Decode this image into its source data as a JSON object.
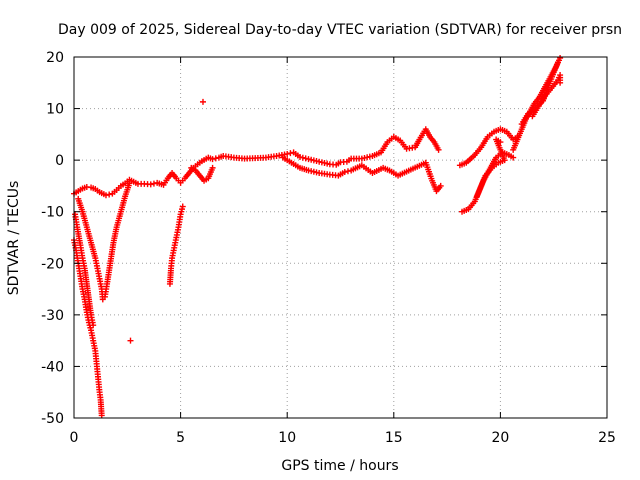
{
  "chart_data": {
    "type": "scatter",
    "title": "Day 009 of 2025, Sidereal Day-to-day VTEC variation (SDTVAR) for receiver prsn",
    "xlabel": "GPS time / hours",
    "ylabel": "SDTVAR / TECUs",
    "xlim": [
      0,
      25
    ],
    "ylim": [
      -50,
      20
    ],
    "grid": true,
    "x_ticks": [
      0,
      5,
      10,
      15,
      20,
      25
    ],
    "y_ticks": [
      20,
      10,
      0,
      -10,
      -20,
      -30,
      -40,
      -50
    ],
    "x_tick_labels": [
      "0",
      "5",
      "10",
      "15",
      "20",
      "25"
    ],
    "y_tick_labels": [
      "20",
      "10",
      "0",
      "-10",
      "-20",
      "-30",
      "-40",
      "-50"
    ],
    "marker": "+",
    "marker_color": "#ff0000",
    "series": [
      {
        "name": "upper-band",
        "points": [
          [
            0.0,
            -6.5
          ],
          [
            0.2,
            -6.0
          ],
          [
            0.4,
            -5.5
          ],
          [
            0.6,
            -5.2
          ],
          [
            0.8,
            -5.3
          ],
          [
            1.0,
            -5.6
          ],
          [
            1.2,
            -6.2
          ],
          [
            1.5,
            -6.8
          ],
          [
            1.8,
            -6.5
          ],
          [
            2.0,
            -5.8
          ],
          [
            2.2,
            -5.0
          ],
          [
            2.4,
            -4.5
          ],
          [
            2.6,
            -3.8
          ],
          [
            2.8,
            -4.2
          ],
          [
            3.0,
            -4.6
          ],
          [
            3.3,
            -4.6
          ],
          [
            3.6,
            -4.7
          ],
          [
            3.9,
            -4.4
          ],
          [
            4.2,
            -4.8
          ],
          [
            4.4,
            -3.5
          ],
          [
            4.6,
            -2.5
          ],
          [
            4.8,
            -3.5
          ],
          [
            5.0,
            -4.4
          ],
          [
            5.2,
            -3.5
          ],
          [
            5.4,
            -2.5
          ],
          [
            5.6,
            -1.5
          ],
          [
            5.8,
            -0.8
          ],
          [
            6.0,
            -0.2
          ],
          [
            6.3,
            0.5
          ],
          [
            6.5,
            0.2
          ],
          [
            6.8,
            0.5
          ],
          [
            7.0,
            0.8
          ],
          [
            7.5,
            0.5
          ],
          [
            8.0,
            0.3
          ],
          [
            8.5,
            0.4
          ],
          [
            9.0,
            0.5
          ],
          [
            9.5,
            0.8
          ],
          [
            10.0,
            1.2
          ],
          [
            10.3,
            1.5
          ],
          [
            10.6,
            0.6
          ],
          [
            11.0,
            0.2
          ],
          [
            11.5,
            -0.3
          ],
          [
            12.0,
            -0.8
          ],
          [
            12.3,
            -0.9
          ],
          [
            12.5,
            -0.4
          ],
          [
            12.8,
            -0.3
          ],
          [
            13.0,
            0.3
          ],
          [
            13.5,
            0.3
          ],
          [
            14.0,
            0.8
          ],
          [
            14.4,
            1.5
          ],
          [
            14.7,
            3.5
          ],
          [
            15.0,
            4.5
          ],
          [
            15.3,
            3.8
          ],
          [
            15.6,
            2.2
          ],
          [
            16.0,
            2.5
          ],
          [
            16.2,
            4.0
          ],
          [
            16.5,
            6.0
          ],
          [
            16.7,
            4.5
          ],
          [
            16.9,
            3.5
          ],
          [
            17.1,
            2.0
          ]
        ]
      },
      {
        "name": "lower-band",
        "points": [
          [
            0.2,
            -7.5
          ],
          [
            0.4,
            -10.0
          ],
          [
            0.6,
            -13.0
          ],
          [
            0.8,
            -16.0
          ],
          [
            1.0,
            -19.0
          ],
          [
            1.1,
            -21.0
          ],
          [
            1.2,
            -23.0
          ],
          [
            1.3,
            -25.0
          ],
          [
            1.35,
            -27.0
          ],
          [
            1.45,
            -26.5
          ],
          [
            1.55,
            -24.0
          ],
          [
            1.7,
            -20.0
          ],
          [
            1.85,
            -16.0
          ],
          [
            2.0,
            -13.0
          ],
          [
            2.2,
            -10.0
          ],
          [
            2.4,
            -7.0
          ],
          [
            2.6,
            -4.5
          ],
          [
            5.5,
            -1.5
          ],
          [
            5.7,
            -2.0
          ],
          [
            5.9,
            -3.0
          ],
          [
            6.1,
            -4.0
          ],
          [
            6.3,
            -3.5
          ],
          [
            6.5,
            -1.5
          ],
          [
            9.8,
            0.5
          ],
          [
            10.2,
            -0.5
          ],
          [
            10.6,
            -1.5
          ],
          [
            11.0,
            -2.0
          ],
          [
            11.5,
            -2.5
          ],
          [
            12.0,
            -2.8
          ],
          [
            12.4,
            -3.0
          ],
          [
            12.7,
            -2.3
          ],
          [
            13.0,
            -2.0
          ],
          [
            13.5,
            -1.0
          ],
          [
            14.0,
            -2.5
          ],
          [
            14.5,
            -1.5
          ],
          [
            14.8,
            -2.0
          ],
          [
            15.2,
            -3.0
          ],
          [
            16.5,
            -0.5
          ],
          [
            16.8,
            -4.0
          ],
          [
            17.0,
            -6.0
          ],
          [
            17.2,
            -5.0
          ]
        ]
      },
      {
        "name": "steep-drop-1",
        "points": [
          [
            0.05,
            -10.5
          ],
          [
            0.15,
            -13.0
          ],
          [
            0.3,
            -16.5
          ],
          [
            0.4,
            -19.0
          ],
          [
            0.5,
            -21.0
          ],
          [
            0.6,
            -24.0
          ],
          [
            0.7,
            -27.0
          ],
          [
            0.8,
            -30.0
          ],
          [
            0.9,
            -32.0
          ]
        ]
      },
      {
        "name": "steep-drop-2",
        "points": [
          [
            0.0,
            -15.5
          ],
          [
            0.1,
            -17.5
          ],
          [
            0.2,
            -20.0
          ],
          [
            0.3,
            -22.5
          ],
          [
            0.4,
            -25.0
          ],
          [
            0.5,
            -27.0
          ],
          [
            0.6,
            -29.5
          ],
          [
            0.7,
            -31.5
          ],
          [
            0.8,
            -33.0
          ],
          [
            0.9,
            -35.0
          ],
          [
            1.0,
            -37.0
          ],
          [
            1.05,
            -39.0
          ],
          [
            1.1,
            -41.0
          ],
          [
            1.15,
            -43.0
          ],
          [
            1.2,
            -45.0
          ],
          [
            1.25,
            -46.5
          ],
          [
            1.3,
            -49.5
          ]
        ]
      },
      {
        "name": "isolated-points",
        "points": [
          [
            2.65,
            -35.0
          ],
          [
            6.05,
            11.3
          ]
        ]
      },
      {
        "name": "segment-4-5h",
        "points": [
          [
            4.5,
            -24.0
          ],
          [
            4.55,
            -21.0
          ],
          [
            4.6,
            -19.0
          ],
          [
            4.7,
            -17.0
          ],
          [
            4.8,
            -15.0
          ],
          [
            4.9,
            -13.0
          ],
          [
            5.0,
            -10.5
          ],
          [
            5.1,
            -9.0
          ]
        ]
      },
      {
        "name": "segment-18-20h-a",
        "points": [
          [
            18.1,
            -1.0
          ],
          [
            18.4,
            -0.5
          ],
          [
            18.8,
            1.0
          ],
          [
            19.1,
            2.5
          ],
          [
            19.4,
            4.5
          ],
          [
            19.7,
            5.5
          ],
          [
            20.0,
            6.0
          ],
          [
            20.3,
            5.5
          ],
          [
            20.6,
            4.0
          ],
          [
            20.8,
            4.5
          ]
        ]
      },
      {
        "name": "segment-18-20h-b",
        "points": [
          [
            18.2,
            -10.0
          ],
          [
            18.5,
            -9.5
          ],
          [
            18.8,
            -8.0
          ],
          [
            19.0,
            -6.0
          ],
          [
            19.2,
            -4.0
          ],
          [
            19.4,
            -2.5
          ],
          [
            19.6,
            -1.0
          ],
          [
            19.8,
            0.5
          ],
          [
            20.1,
            1.5
          ],
          [
            20.4,
            1.0
          ],
          [
            20.6,
            0.5
          ]
        ]
      },
      {
        "name": "segment-19-20h-c",
        "points": [
          [
            18.9,
            -7.0
          ],
          [
            19.1,
            -5.0
          ],
          [
            19.3,
            -3.0
          ],
          [
            19.6,
            -1.5
          ],
          [
            19.9,
            -0.5
          ],
          [
            20.2,
            0.0
          ],
          [
            19.8,
            4.0
          ],
          [
            20.0,
            3.5
          ]
        ]
      },
      {
        "name": "rise-20-23h",
        "points": [
          [
            20.6,
            2.0
          ],
          [
            20.8,
            4.0
          ],
          [
            21.0,
            6.0
          ],
          [
            21.2,
            8.0
          ],
          [
            21.4,
            9.5
          ],
          [
            21.6,
            11.0
          ],
          [
            21.8,
            12.0
          ],
          [
            22.0,
            13.5
          ],
          [
            22.2,
            15.0
          ],
          [
            22.4,
            16.5
          ],
          [
            22.6,
            18.0
          ],
          [
            22.8,
            19.8
          ],
          [
            21.5,
            8.5
          ],
          [
            21.8,
            10.5
          ],
          [
            22.1,
            12.5
          ],
          [
            22.4,
            14.0
          ],
          [
            22.7,
            15.5
          ],
          [
            22.8,
            16.5
          ],
          [
            22.8,
            15.0
          ],
          [
            21.0,
            7.0
          ],
          [
            21.3,
            9.0
          ],
          [
            22.0,
            11.5
          ],
          [
            22.5,
            17.0
          ],
          [
            22.7,
            19.0
          ]
        ]
      }
    ]
  }
}
